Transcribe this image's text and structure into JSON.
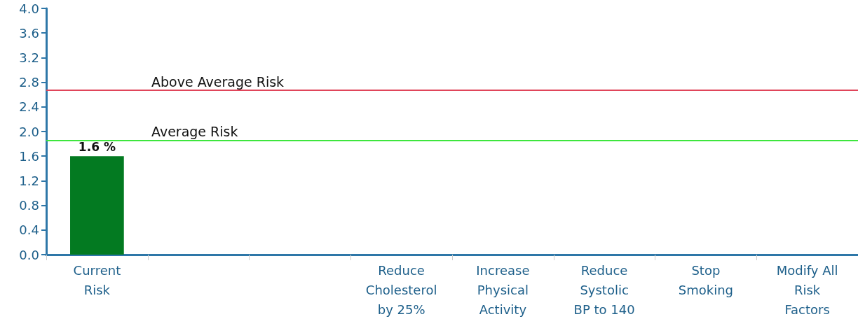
{
  "chart_data": {
    "type": "bar",
    "categories": [
      "Current Risk",
      null,
      null,
      "Reduce Cholesterol by 25%",
      "Increase Physical Activity",
      "Reduce Systolic BP to 140",
      "Stop Smoking",
      "Modify All Risk Factors"
    ],
    "values": [
      1.6,
      null,
      null,
      null,
      null,
      null,
      null,
      null
    ],
    "value_labels": [
      "1.6 %",
      null,
      null,
      null,
      null,
      null,
      null,
      null
    ],
    "color": "#037a21",
    "ylim": [
      0,
      4.0
    ],
    "yticks": [
      {
        "value": 0,
        "label": "0.0"
      },
      {
        "value": 0.4,
        "label": "0.4"
      },
      {
        "value": 0.8,
        "label": "0.8"
      },
      {
        "value": 1.2,
        "label": "1.2"
      },
      {
        "value": 1.6,
        "label": "1.6"
      },
      {
        "value": 2.0,
        "label": "2.0"
      },
      {
        "value": 2.4,
        "label": "2.4"
      },
      {
        "value": 2.8,
        "label": "2.8"
      },
      {
        "value": 3.2,
        "label": "3.2"
      },
      {
        "value": 3.6,
        "label": "3.6"
      },
      {
        "value": 4.0,
        "label": "4.0"
      }
    ],
    "ref_lines": [
      {
        "axis": "y",
        "value": 2.67,
        "label": "Above Average Risk",
        "color": "#e0455a"
      },
      {
        "axis": "y",
        "value": 1.86,
        "label": "Average Risk",
        "color": "#3ee63e"
      }
    ],
    "grid": false
  }
}
